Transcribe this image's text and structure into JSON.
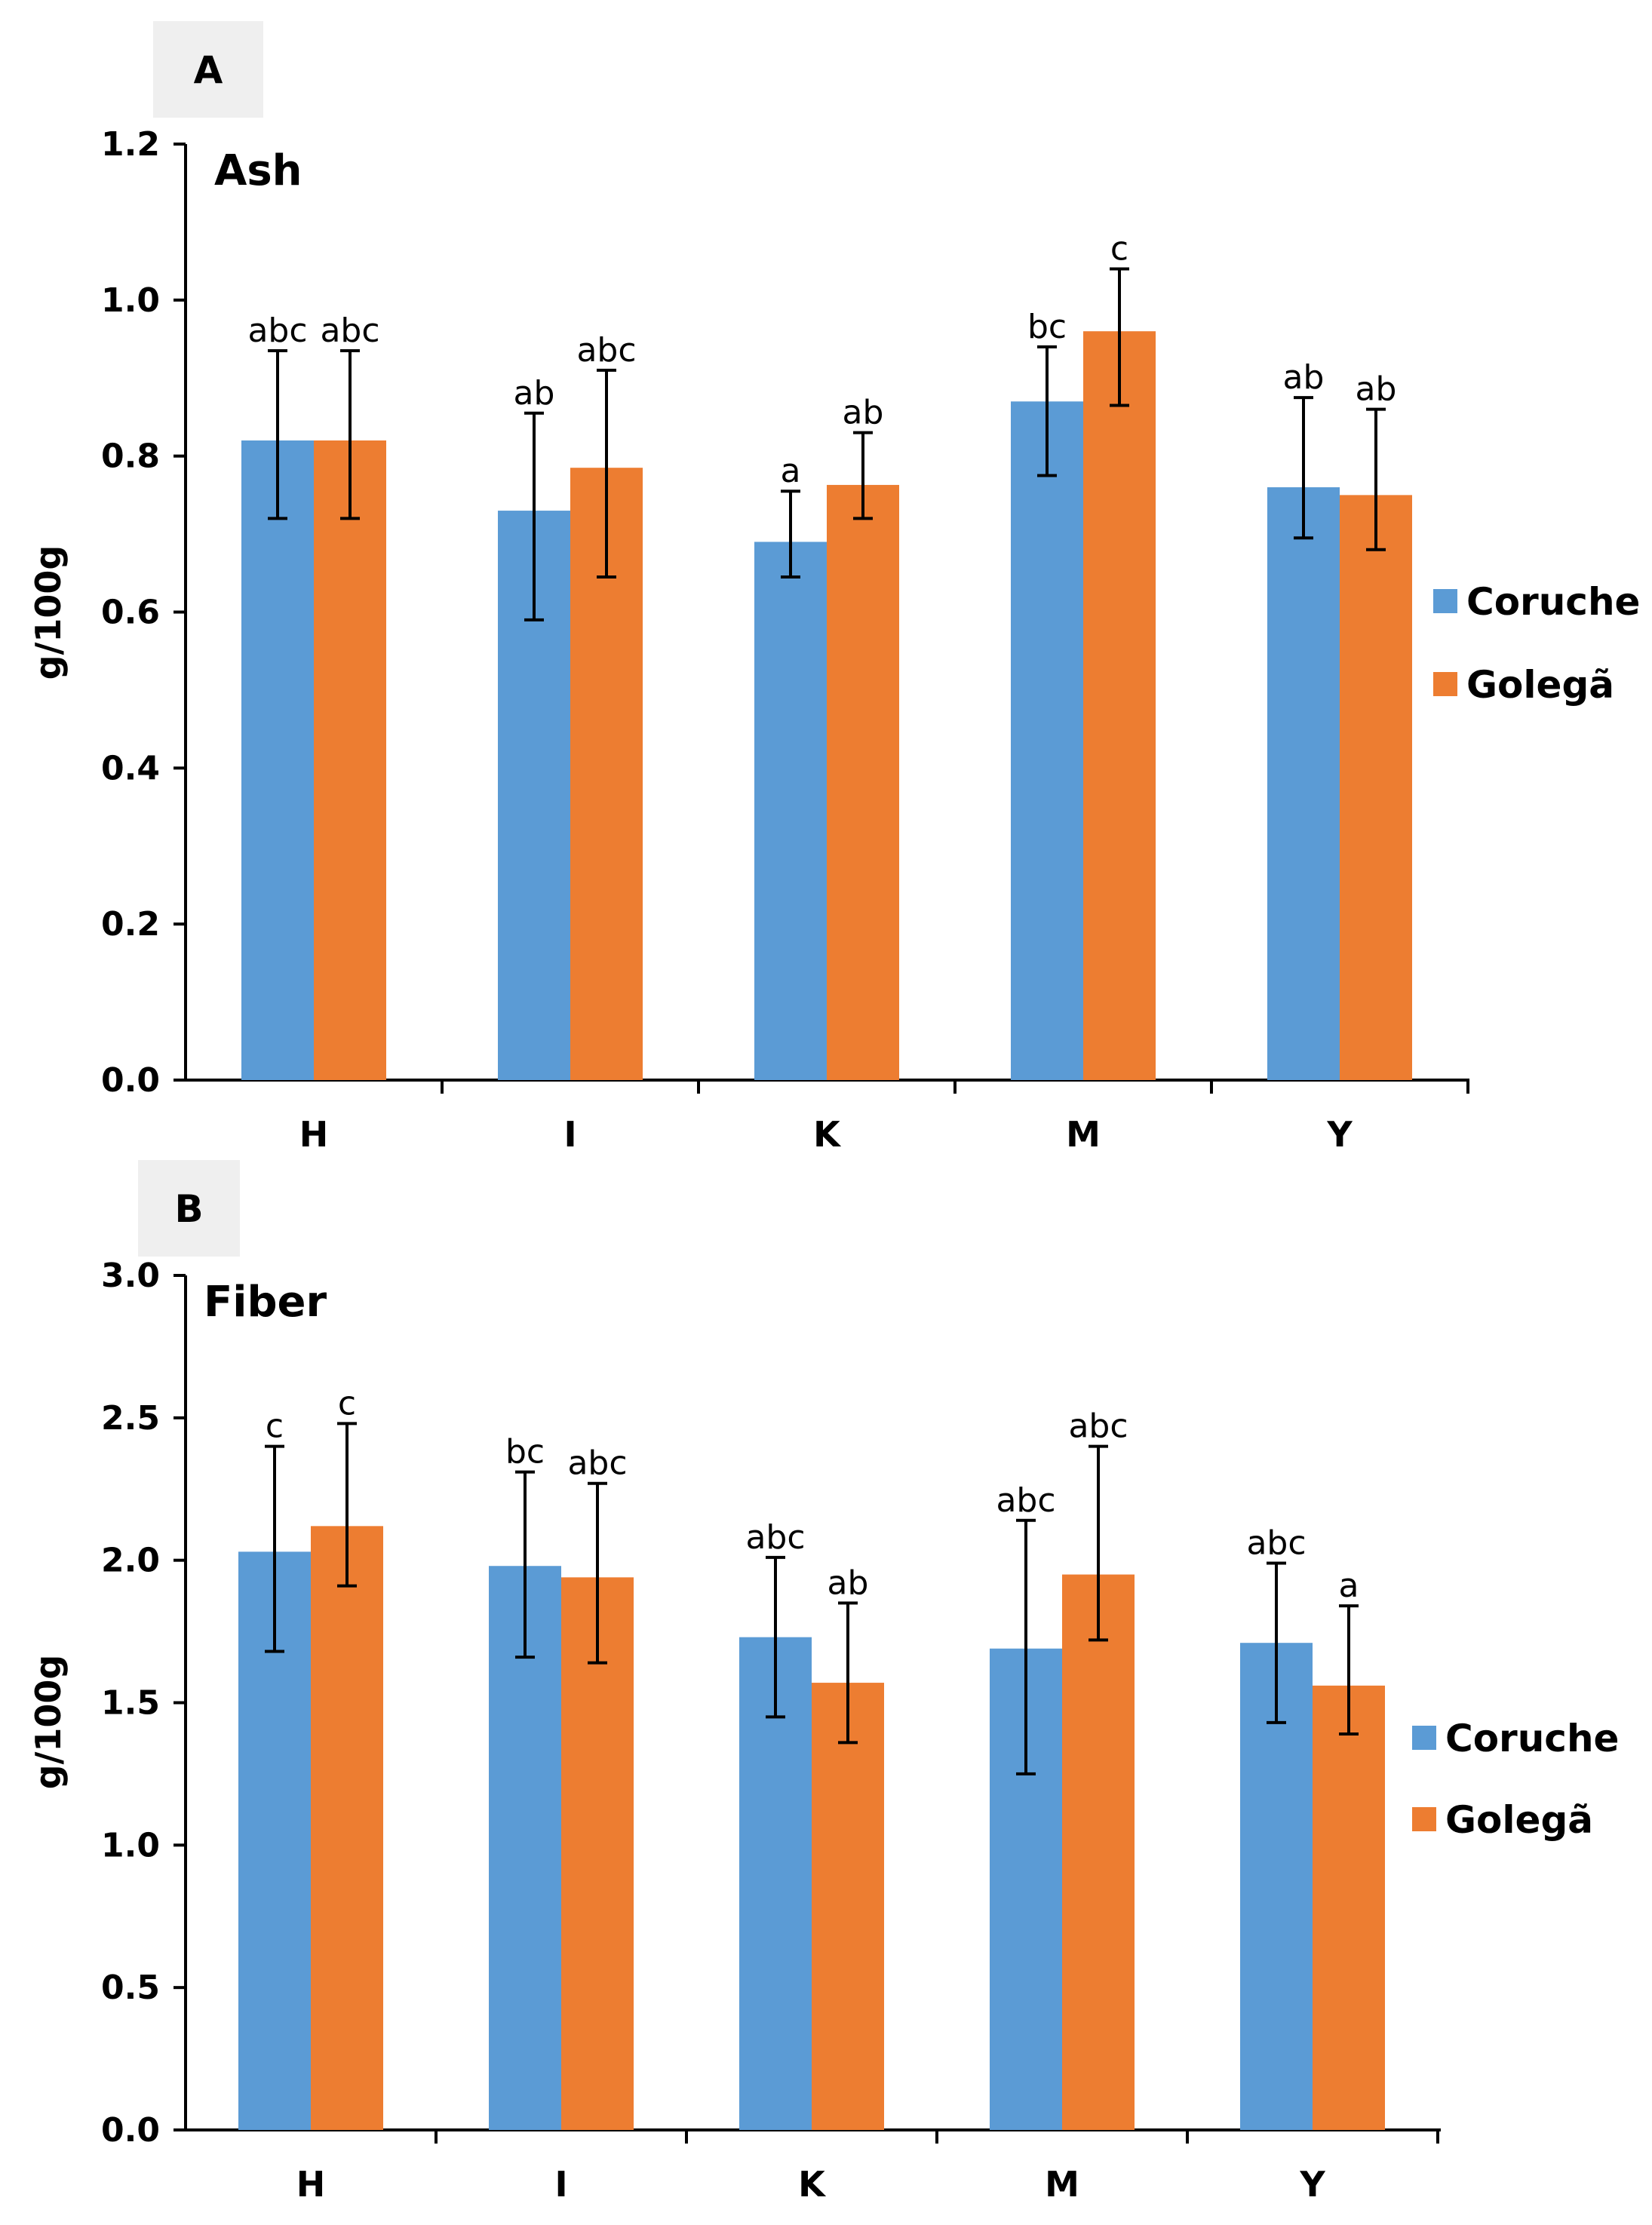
{
  "colors": {
    "coruche": "#5b9bd5",
    "golega": "#ed7d31"
  },
  "chart_data": [
    {
      "type": "bar",
      "panel_label": "A",
      "title": "Ash",
      "ylabel": "g/100g",
      "xlabel": "",
      "ylim": [
        0,
        1.2
      ],
      "yticks": [
        "0.0",
        "0.2",
        "0.4",
        "0.6",
        "0.8",
        "1.0",
        "1.2"
      ],
      "ytick_values": [
        0,
        0.2,
        0.4,
        0.6,
        0.8,
        1.0,
        1.2
      ],
      "categories": [
        "H",
        "I",
        "K",
        "M",
        "Y"
      ],
      "legend_position": "right",
      "series": [
        {
          "name": "Coruche",
          "values": [
            0.82,
            0.73,
            0.69,
            0.87,
            0.76
          ],
          "err_low": [
            0.72,
            0.59,
            0.645,
            0.775,
            0.695
          ],
          "err_high": [
            0.935,
            0.855,
            0.755,
            0.94,
            0.875
          ],
          "labels": [
            "abc",
            "ab",
            "a",
            "bc",
            "ab"
          ]
        },
        {
          "name": "Golegã",
          "values": [
            0.82,
            0.785,
            0.763,
            0.96,
            0.75
          ],
          "err_low": [
            0.72,
            0.645,
            0.72,
            0.865,
            0.68
          ],
          "err_high": [
            0.935,
            0.91,
            0.83,
            1.04,
            0.86
          ],
          "labels": [
            "abc",
            "abc",
            "ab",
            "c",
            "ab"
          ]
        }
      ]
    },
    {
      "type": "bar",
      "panel_label": "B",
      "title": "Fiber",
      "ylabel": "g/100g",
      "xlabel": "",
      "ylim": [
        0,
        3.0
      ],
      "yticks": [
        "0.0",
        "0.5",
        "1.0",
        "1.5",
        "2.0",
        "2.5",
        "3.0"
      ],
      "ytick_values": [
        0,
        0.5,
        1.0,
        1.5,
        2.0,
        2.5,
        3.0
      ],
      "categories": [
        "H",
        "I",
        "K",
        "M",
        "Y"
      ],
      "legend_position": "right",
      "series": [
        {
          "name": "Coruche",
          "values": [
            2.03,
            1.98,
            1.73,
            1.69,
            1.71
          ],
          "err_low": [
            1.68,
            1.66,
            1.45,
            1.25,
            1.43
          ],
          "err_high": [
            2.4,
            2.31,
            2.01,
            2.14,
            1.99
          ],
          "labels": [
            "c",
            "bc",
            "abc",
            "abc",
            "abc"
          ]
        },
        {
          "name": "Golegã",
          "values": [
            2.12,
            1.94,
            1.57,
            1.95,
            1.56
          ],
          "err_low": [
            1.91,
            1.64,
            1.36,
            1.72,
            1.39
          ],
          "err_high": [
            2.48,
            2.27,
            1.85,
            2.4,
            1.84
          ],
          "labels": [
            "c",
            "abc",
            "ab",
            "abc",
            "a"
          ]
        }
      ]
    }
  ]
}
